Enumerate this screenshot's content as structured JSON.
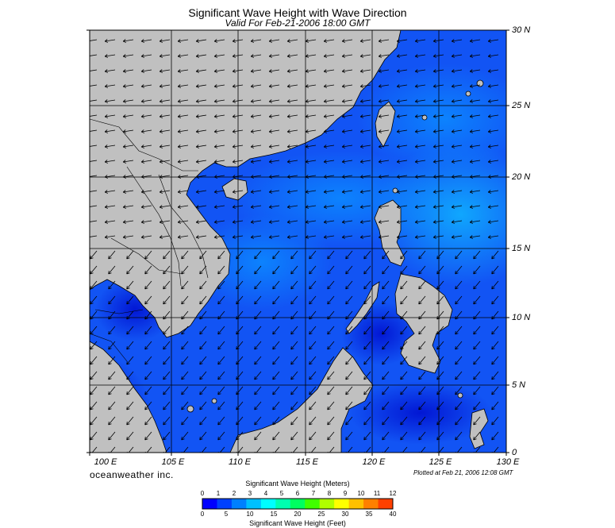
{
  "title": "Significant Wave Height with Wave Direction",
  "subtitle": "Valid For Feb-21-2006 18:00 GMT",
  "lat_labels": [
    "30 N",
    "25 N",
    "20 N",
    "15 N",
    "10 N",
    "5 N",
    "0"
  ],
  "lon_labels": [
    "100 E",
    "105 E",
    "110 E",
    "115 E",
    "120 E",
    "125 E",
    "130 E"
  ],
  "brand": "oceanweather inc.",
  "plotted_at": "Plotted at Feb 21, 2006 12:08 GMT",
  "legend": {
    "title_meters": "Significant Wave Height (Meters)",
    "title_feet": "Significant Wave Height (Feet)",
    "meters_ticks": [
      "0",
      "1",
      "2",
      "3",
      "4",
      "5",
      "6",
      "7",
      "8",
      "9",
      "10",
      "11",
      "12"
    ],
    "feet_ticks": [
      "0",
      "5",
      "10",
      "15",
      "20",
      "25",
      "30",
      "35",
      "40"
    ],
    "colors": [
      "#0000ff",
      "#0040ff",
      "#0080ff",
      "#00c0ff",
      "#00ffff",
      "#00ffb0",
      "#00ff60",
      "#40ff00",
      "#b0ff00",
      "#ffff00",
      "#ffc000",
      "#ff8000",
      "#ff4000"
    ]
  },
  "colors": {
    "land": "#c0c0c0",
    "ocean_low": "#1040f0",
    "ocean_mid": "#1068ff",
    "ocean_high": "#10a8ff",
    "grid": "#000000"
  },
  "wave_direction": "from northeast (arrows pointing southwest)"
}
